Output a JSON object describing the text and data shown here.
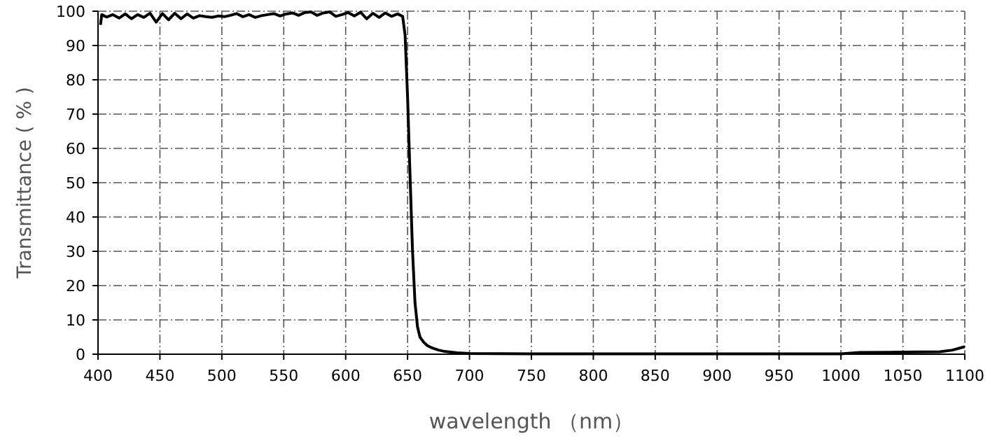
{
  "chart_data": {
    "type": "line",
    "xlabel": "wavelength （nm）",
    "ylabel": "Transmittance ( % )",
    "xlim": [
      400,
      1100
    ],
    "ylim": [
      0,
      100
    ],
    "xticks": [
      400,
      450,
      500,
      550,
      600,
      650,
      700,
      750,
      800,
      850,
      900,
      950,
      1000,
      1050,
      1100
    ],
    "yticks": [
      0,
      10,
      20,
      30,
      40,
      50,
      60,
      70,
      80,
      90,
      100
    ],
    "grid": true,
    "marker": "none",
    "line_style": "solid",
    "series": [
      {
        "color": "#000000",
        "x": [
          402,
          403,
          407,
          412,
          417,
          422,
          427,
          432,
          437,
          442,
          447,
          452,
          457,
          462,
          467,
          472,
          477,
          482,
          487,
          492,
          497,
          502,
          507,
          512,
          517,
          522,
          527,
          532,
          537,
          542,
          547,
          552,
          557,
          562,
          567,
          572,
          577,
          582,
          587,
          592,
          597,
          602,
          607,
          612,
          617,
          622,
          627,
          632,
          637,
          642,
          646,
          648,
          650,
          652,
          654,
          656,
          658,
          660,
          663,
          666,
          670,
          675,
          680,
          690,
          700,
          750,
          800,
          850,
          900,
          950,
          1000,
          1015,
          1050,
          1080,
          1090,
          1100
        ],
        "values": [
          96,
          99,
          98.3,
          99,
          98,
          99.2,
          97.8,
          99,
          98.2,
          99.4,
          96.8,
          99.3,
          97.5,
          99.4,
          97.8,
          99.2,
          98,
          98.7,
          98.4,
          98.2,
          98.6,
          98.4,
          98.8,
          99.3,
          98.4,
          99,
          98.2,
          98.7,
          99,
          99.3,
          98.6,
          99.2,
          99.5,
          98.8,
          99.6,
          99.8,
          98.8,
          99.5,
          99.8,
          98.5,
          99,
          99.6,
          98.6,
          99.7,
          97.8,
          99.4,
          98.2,
          99.5,
          98.5,
          99.2,
          98.5,
          93,
          75,
          52,
          30,
          15,
          8,
          5,
          3.5,
          2.5,
          1.8,
          1.2,
          0.8,
          0.4,
          0.2,
          0.1,
          0.1,
          0.1,
          0.1,
          0.1,
          0.1,
          0.5,
          0.6,
          0.7,
          1.2,
          2.2
        ]
      }
    ]
  }
}
